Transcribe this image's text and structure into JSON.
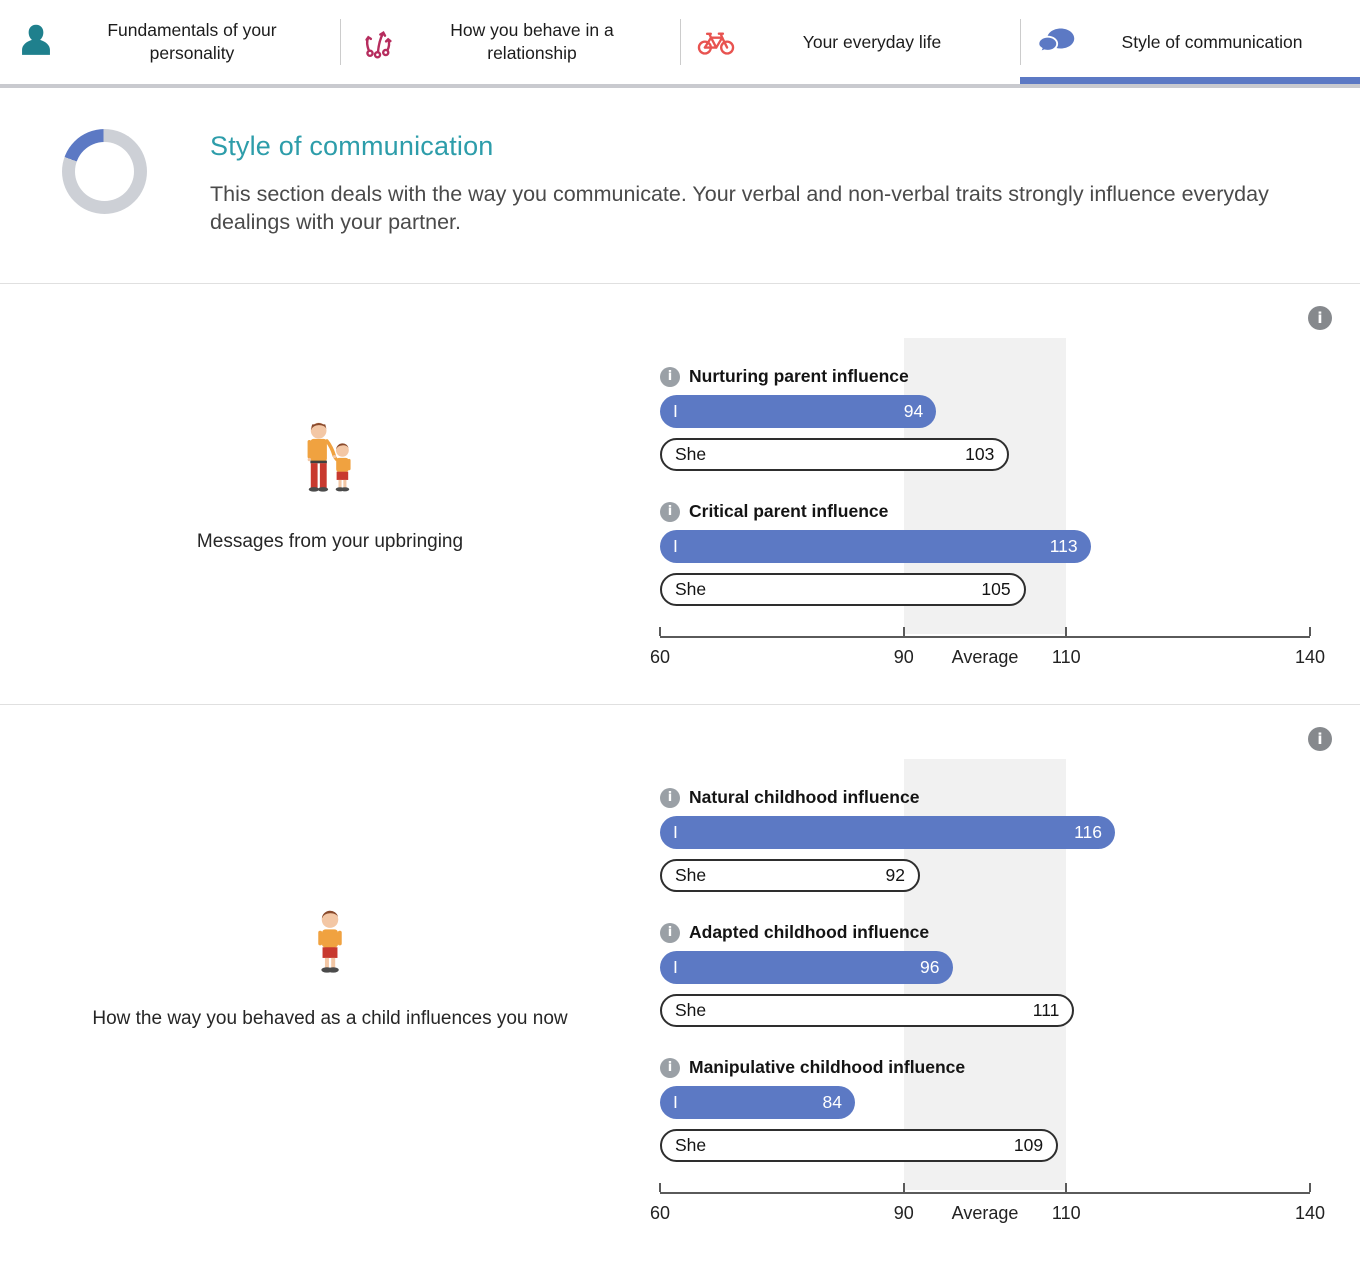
{
  "tabs": [
    {
      "label": "Fundamentals of your personality",
      "icon": "person-icon",
      "active": false
    },
    {
      "label": "How you behave in a relationship",
      "icon": "branching-paths-icon",
      "active": false
    },
    {
      "label": "Your everyday life",
      "icon": "bicycle-icon",
      "active": false
    },
    {
      "label": "Style of communication",
      "icon": "speech-bubbles-icon",
      "active": true
    }
  ],
  "intro": {
    "title": "Style of communication",
    "description": "This section deals with the way you communicate. Your verbal and non-verbal traits strongly influence everyday dealings with your partner.",
    "progress_percent": 19
  },
  "colors": {
    "accent_blue": "#5c79c4",
    "teal": "#2d9daa",
    "teal_icon": "#1f808d",
    "magenta_icon": "#b62d5e",
    "red_icon": "#e85350",
    "donut_track": "#cdd0d6",
    "average_band": "#f1f1f1",
    "info_gray": "#9aa0a6"
  },
  "sections": [
    {
      "caption": "Messages from your upbringing",
      "illustration": "adult-and-child",
      "chart_data": {
        "type": "bar",
        "series_names": [
          "I",
          "She"
        ],
        "axis": {
          "min": 60,
          "max": 140,
          "ticks": [
            60,
            90,
            110,
            140
          ],
          "average_band": [
            90,
            110
          ],
          "average_label": "Average"
        },
        "rows": [
          {
            "label": "Nurturing parent influence",
            "I": 94,
            "She": 103
          },
          {
            "label": "Critical parent influence",
            "I": 113,
            "She": 105
          }
        ]
      }
    },
    {
      "caption": "How the way you behaved as a child influences you now",
      "illustration": "child",
      "chart_data": {
        "type": "bar",
        "series_names": [
          "I",
          "She"
        ],
        "axis": {
          "min": 60,
          "max": 140,
          "ticks": [
            60,
            90,
            110,
            140
          ],
          "average_band": [
            90,
            110
          ],
          "average_label": "Average"
        },
        "rows": [
          {
            "label": "Natural childhood influence",
            "I": 116,
            "She": 92
          },
          {
            "label": "Adapted childhood influence",
            "I": 96,
            "She": 111
          },
          {
            "label": "Manipulative childhood influence",
            "I": 84,
            "She": 109
          }
        ]
      }
    }
  ],
  "info_icon": "i"
}
